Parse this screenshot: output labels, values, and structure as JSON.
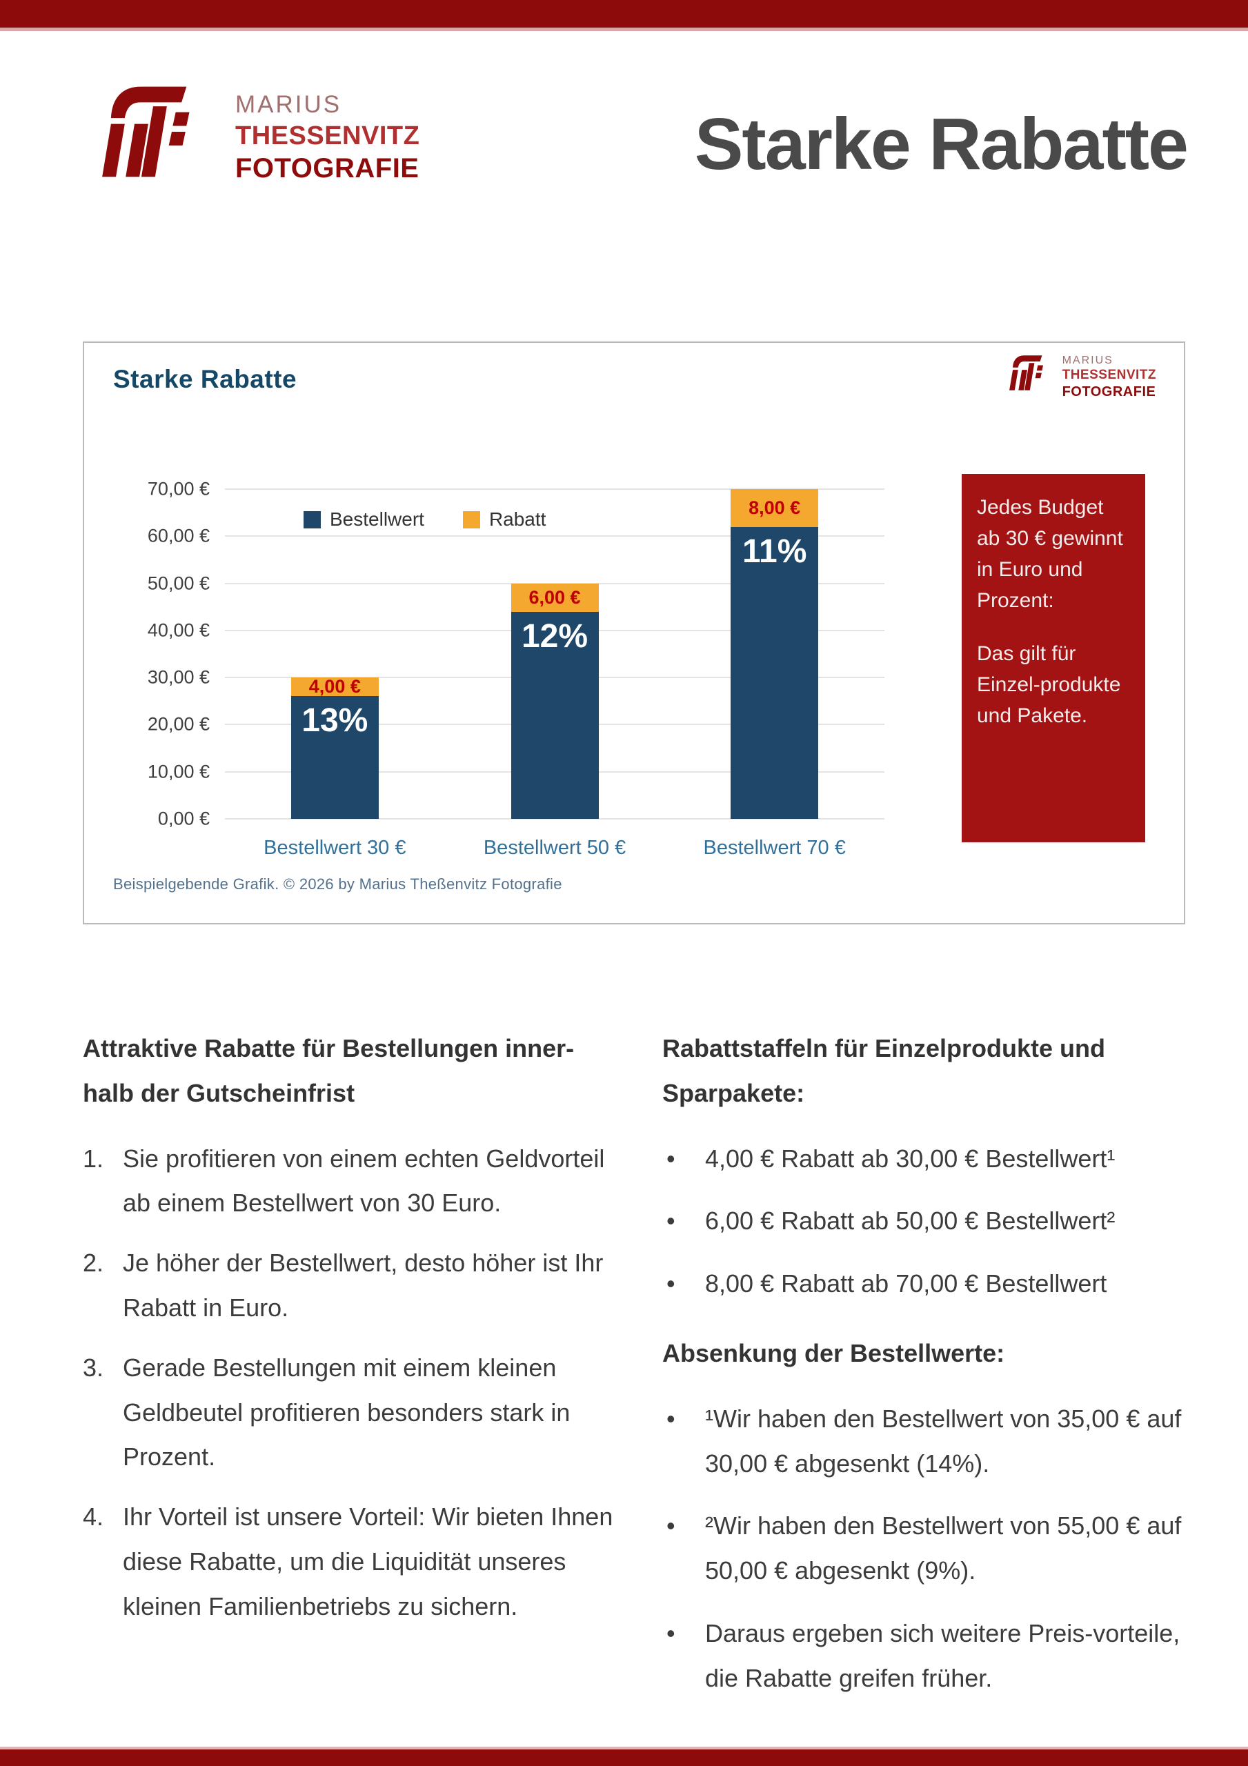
{
  "header": {
    "brand": {
      "name_line": "MARIUS",
      "surname_line": "THESSENVITZ",
      "field_line": "FOTOGRAFIE"
    },
    "page_title": "Starke Rabatte"
  },
  "chart_card": {
    "title": "Starke Rabatte",
    "callout": {
      "para1": "Jedes Budget ab 30 € gewinnt in Euro und Prozent:",
      "para2": "Das gilt für Einzel-produkte und Pakete."
    },
    "caption": "Beispielgebende Grafik. © 2026 by Marius Theßenvitz Fotografie"
  },
  "chart_data": {
    "type": "bar",
    "stacked": true,
    "title": "Starke Rabatte",
    "categories": [
      "Bestellwert 30 €",
      "Bestellwert 50 €",
      "Bestellwert 70 €"
    ],
    "series": [
      {
        "name": "Bestellwert",
        "color": "#1E4769",
        "values": [
          26,
          44,
          62
        ]
      },
      {
        "name": "Rabatt",
        "color": "#F5A830",
        "values": [
          4,
          6,
          8
        ]
      }
    ],
    "totals": [
      30,
      50,
      70
    ],
    "rabatt_labels": [
      "4,00 €",
      "6,00 €",
      "8,00 €"
    ],
    "percent_labels": [
      "13%",
      "12%",
      "11%"
    ],
    "y_ticks": [
      "70,00 €",
      "60,00 €",
      "50,00 €",
      "40,00 €",
      "30,00 €",
      "20,00 €",
      "10,00 €",
      "0,00 €"
    ],
    "ylim": [
      0,
      70
    ],
    "grid": true,
    "legend_position": "top-inside"
  },
  "content": {
    "left": {
      "heading": "Attraktive Rabatte für Bestellungen inner-halb der Gutscheinfrist",
      "items": [
        "Sie profitieren von einem echten Geldvorteil ab einem Bestellwert von 30 Euro.",
        "Je höher der Bestellwert, desto höher ist Ihr Rabatt in Euro.",
        "Gerade Bestellungen mit einem kleinen Geldbeutel profitieren besonders stark in Prozent.",
        "Ihr Vorteil ist unsere Vorteil: Wir bieten Ihnen diese Rabatte, um die Liquidität unseres kleinen Familienbetriebs zu sichern."
      ]
    },
    "right": {
      "heading1": "Rabattstaffeln für Einzelprodukte und Sparpakete:",
      "bullets1": [
        "4,00 € Rabatt ab 30,00 € Bestellwert¹",
        "6,00 € Rabatt ab 50,00 € Bestellwert²",
        "8,00 € Rabatt ab 70,00 € Bestellwert"
      ],
      "heading2": "Absenkung der Bestellwerte:",
      "bullets2": [
        "¹Wir haben den Bestellwert von 35,00 € auf 30,00 € abgesenkt (14%).",
        "²Wir haben den Bestellwert von 55,00 € auf 50,00 € abgesenkt (9%).",
        "Daraus ergeben sich weitere Preis-vorteile, die Rabatte greifen früher."
      ]
    }
  },
  "colors": {
    "brand_bar_red": "#8E0B0B",
    "brand_red": "#B03030",
    "brand_muted_red": "#A07070",
    "callout_red": "#A31314",
    "bar_navy": "#1E4769",
    "bar_orange": "#F5A830",
    "euro_label_red": "#C00000",
    "axis_category_blue": "#31709B",
    "chart_title_navy": "#154767",
    "caption_blue": "#54718C",
    "page_title_gray": "#4A4A4A",
    "body_text": "#3C3C3C"
  }
}
